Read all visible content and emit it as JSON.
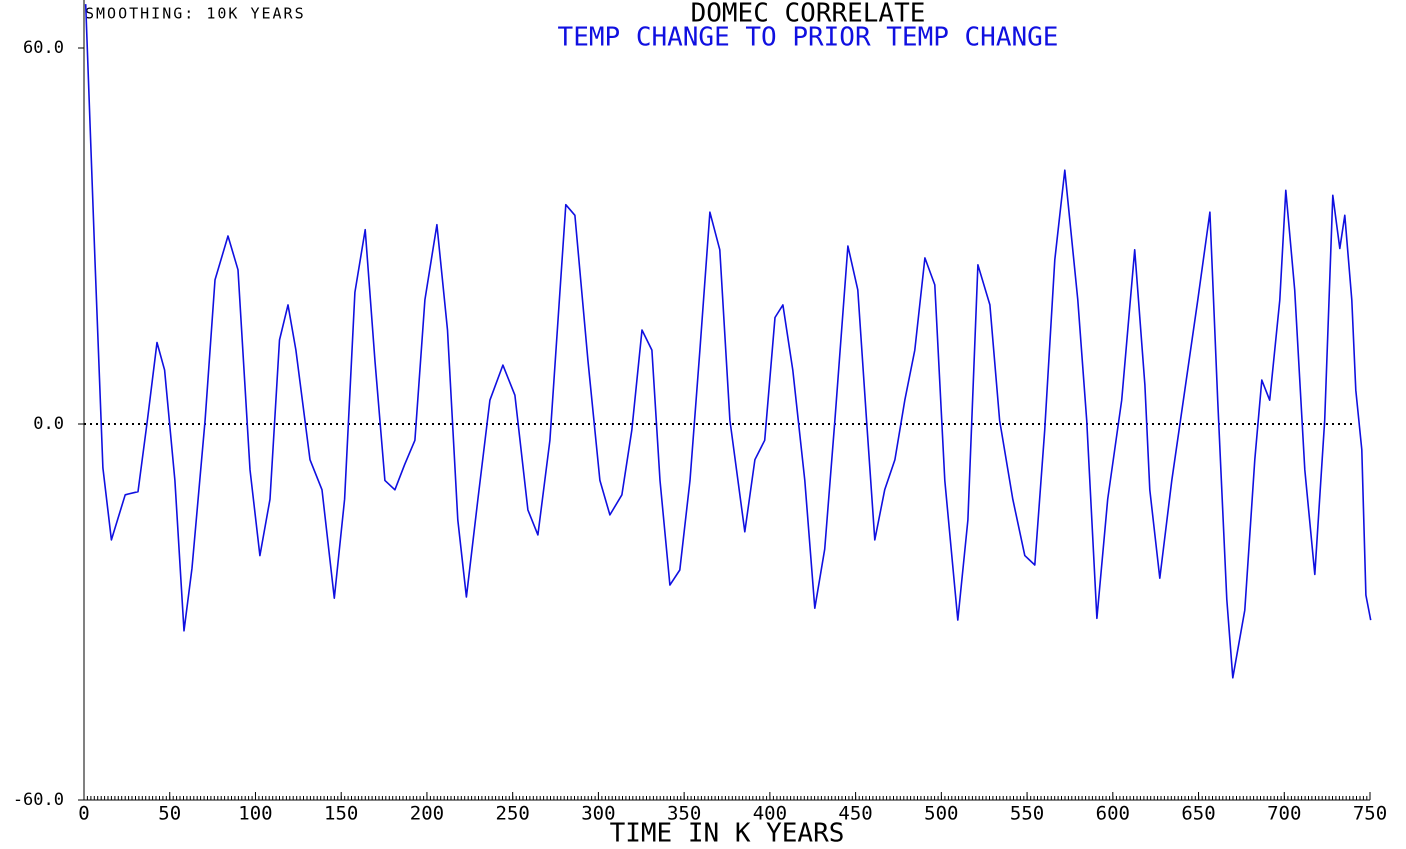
{
  "chart_data": {
    "type": "line",
    "title": "DOMEC CORRELATE",
    "subtitle": "TEMP CHANGE TO PRIOR TEMP CHANGE",
    "annotation": "SMOOTHING: 10K YEARS",
    "x_label": "TIME IN K YEARS",
    "color": "#1010e0",
    "x": [
      1,
      6.4,
      11,
      16,
      24,
      31.5,
      37,
      42.6,
      47,
      53,
      58.3,
      63,
      70.6,
      76.4,
      84,
      89.8,
      96.8,
      102.6,
      108.5,
      114,
      119,
      123.6,
      131.8,
      138.8,
      146,
      152,
      158,
      164,
      169.7,
      175.5,
      181.3,
      187,
      193,
      198.8,
      205.8,
      212,
      218,
      223,
      229.7,
      236.7,
      244.3,
      251.3,
      258.9,
      264.7,
      271.7,
      281,
      286.3,
      293.9,
      300.9,
      306.7,
      313.7,
      319.5,
      325.4,
      331.2,
      335.9,
      341.7,
      347.5,
      353.4,
      359.2,
      365,
      370.8,
      376.7,
      385.4,
      391.3,
      397,
      403,
      407.6,
      413.4,
      420.4,
      426.2,
      432,
      437.9,
      445.5,
      451.3,
      456.6,
      461.2,
      467,
      472.9,
      478.7,
      484.5,
      490.4,
      496.2,
      502,
      509.6,
      515.5,
      521.3,
      528.3,
      534,
      541.7,
      548.7,
      554.5,
      560.3,
      566.2,
      572,
      579.6,
      584.8,
      590.7,
      597,
      605.2,
      612.8,
      618.7,
      621.6,
      627.4,
      634.4,
      642,
      649.6,
      656.6,
      661.2,
      666.5,
      670,
      677,
      682.8,
      686.9,
      691.5,
      697.4,
      700.9,
      706.1,
      712,
      717.8,
      723.6,
      728.3,
      732.4,
      735.3,
      739.4,
      741.7,
      745.2,
      747.6,
      750.4
    ],
    "values": [
      67,
      26,
      -7,
      -18.5,
      -11.3,
      -10.8,
      0.6,
      13,
      8.6,
      -9,
      -33,
      -23,
      0.6,
      23,
      30,
      24.6,
      -7.3,
      -21,
      -12,
      13.4,
      19,
      11.8,
      -5.7,
      -10.5,
      -27.8,
      -12,
      21,
      31,
      10,
      -9,
      -10.5,
      -6.5,
      -2.6,
      19.8,
      31.8,
      15,
      -15.3,
      -27.6,
      -12,
      3.8,
      9.4,
      4.6,
      -13.7,
      -17.7,
      -2.6,
      35,
      33.3,
      10.2,
      -9,
      -14.5,
      -11.3,
      -1,
      15,
      11.8,
      -9,
      -25.7,
      -23.3,
      -9,
      11.8,
      33.8,
      27.8,
      0.6,
      -17.2,
      -5.7,
      -2.6,
      17,
      19,
      8.6,
      -9,
      -29.4,
      -20,
      0.6,
      28.4,
      21.4,
      -0.2,
      -18.5,
      -10.5,
      -5.7,
      3.8,
      11.8,
      26.5,
      22.2,
      -9,
      -31.3,
      -15.3,
      25.4,
      19,
      0.6,
      -12,
      -21,
      -22.5,
      -1,
      26.2,
      40.5,
      19.8,
      0.6,
      -31,
      -12,
      3.8,
      27.8,
      6.2,
      -10.5,
      -24.6,
      -9,
      5.4,
      19.8,
      33.8,
      3.8,
      -28,
      -40.5,
      -29.7,
      -5.7,
      7,
      3.8,
      19.8,
      37.3,
      21.4,
      -7.3,
      -24,
      0.6,
      36.5,
      28,
      33.3,
      19.8,
      5.4,
      -4.1,
      -27.3,
      -31.3
    ],
    "xlim": [
      0,
      750
    ],
    "xticks": [
      0,
      50,
      100,
      150,
      200,
      250,
      300,
      350,
      400,
      450,
      500,
      550,
      600,
      650,
      700,
      750
    ],
    "ylim": [
      -60,
      60
    ],
    "yticks": [
      {
        "value": -60,
        "label": "-60.0"
      },
      {
        "value": 0,
        "label": "0.0"
      },
      {
        "value": 60,
        "label": "60.0"
      }
    ],
    "zero_line": true
  }
}
